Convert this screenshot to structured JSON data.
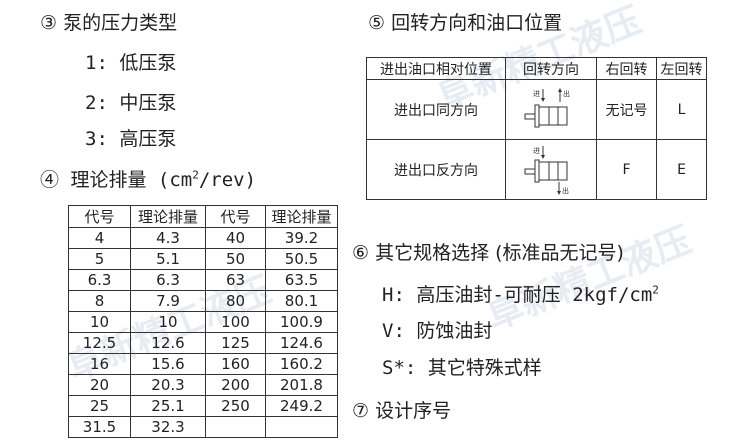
{
  "watermark": "阜新精工液压",
  "section3": {
    "title": "③ 泵的压力类型",
    "items": [
      "1: 低压泵",
      "2: 中压泵",
      "3: 高压泵"
    ]
  },
  "section4": {
    "title": "④ 理论排量 (cm",
    "sup": "2",
    "tail": "/rev)",
    "headers": [
      "代号",
      "理论排量",
      "代号",
      "理论排量"
    ],
    "rows": [
      [
        "4",
        "4.3",
        "40",
        "39.2"
      ],
      [
        "5",
        "5.1",
        "50",
        "50.5"
      ],
      [
        "6.3",
        "6.3",
        "63",
        "63.5"
      ],
      [
        "8",
        "7.9",
        "80",
        "80.1"
      ],
      [
        "10",
        "10",
        "100",
        "100.9"
      ],
      [
        "12.5",
        "12.6",
        "125",
        "124.6"
      ],
      [
        "16",
        "15.6",
        "160",
        "160.2"
      ],
      [
        "20",
        "20.3",
        "200",
        "201.8"
      ],
      [
        "25",
        "25.1",
        "250",
        "249.2"
      ],
      [
        "31.5",
        "32.3",
        "",
        ""
      ]
    ]
  },
  "section5": {
    "title": "⑤ 回转方向和油口位置",
    "headers": [
      "进出油口相对位置",
      "回转方向",
      "右回转",
      "左回转"
    ],
    "rows": [
      {
        "position": "进出口同方向",
        "right": "无记号",
        "left": "L",
        "in": "进",
        "out": "出"
      },
      {
        "position": "进出口反方向",
        "right": "F",
        "left": "E",
        "in": "进",
        "out": "出"
      }
    ]
  },
  "section6": {
    "title": "⑥ 其它规格选择 (标准品无记号)",
    "h": "H: 高压油封-可耐压 2kgf/cm",
    "h_sup": "2",
    "v": "V: 防蚀油封",
    "s": "S*: 其它特殊式样"
  },
  "section7": {
    "title": "⑦ 设计序号"
  }
}
